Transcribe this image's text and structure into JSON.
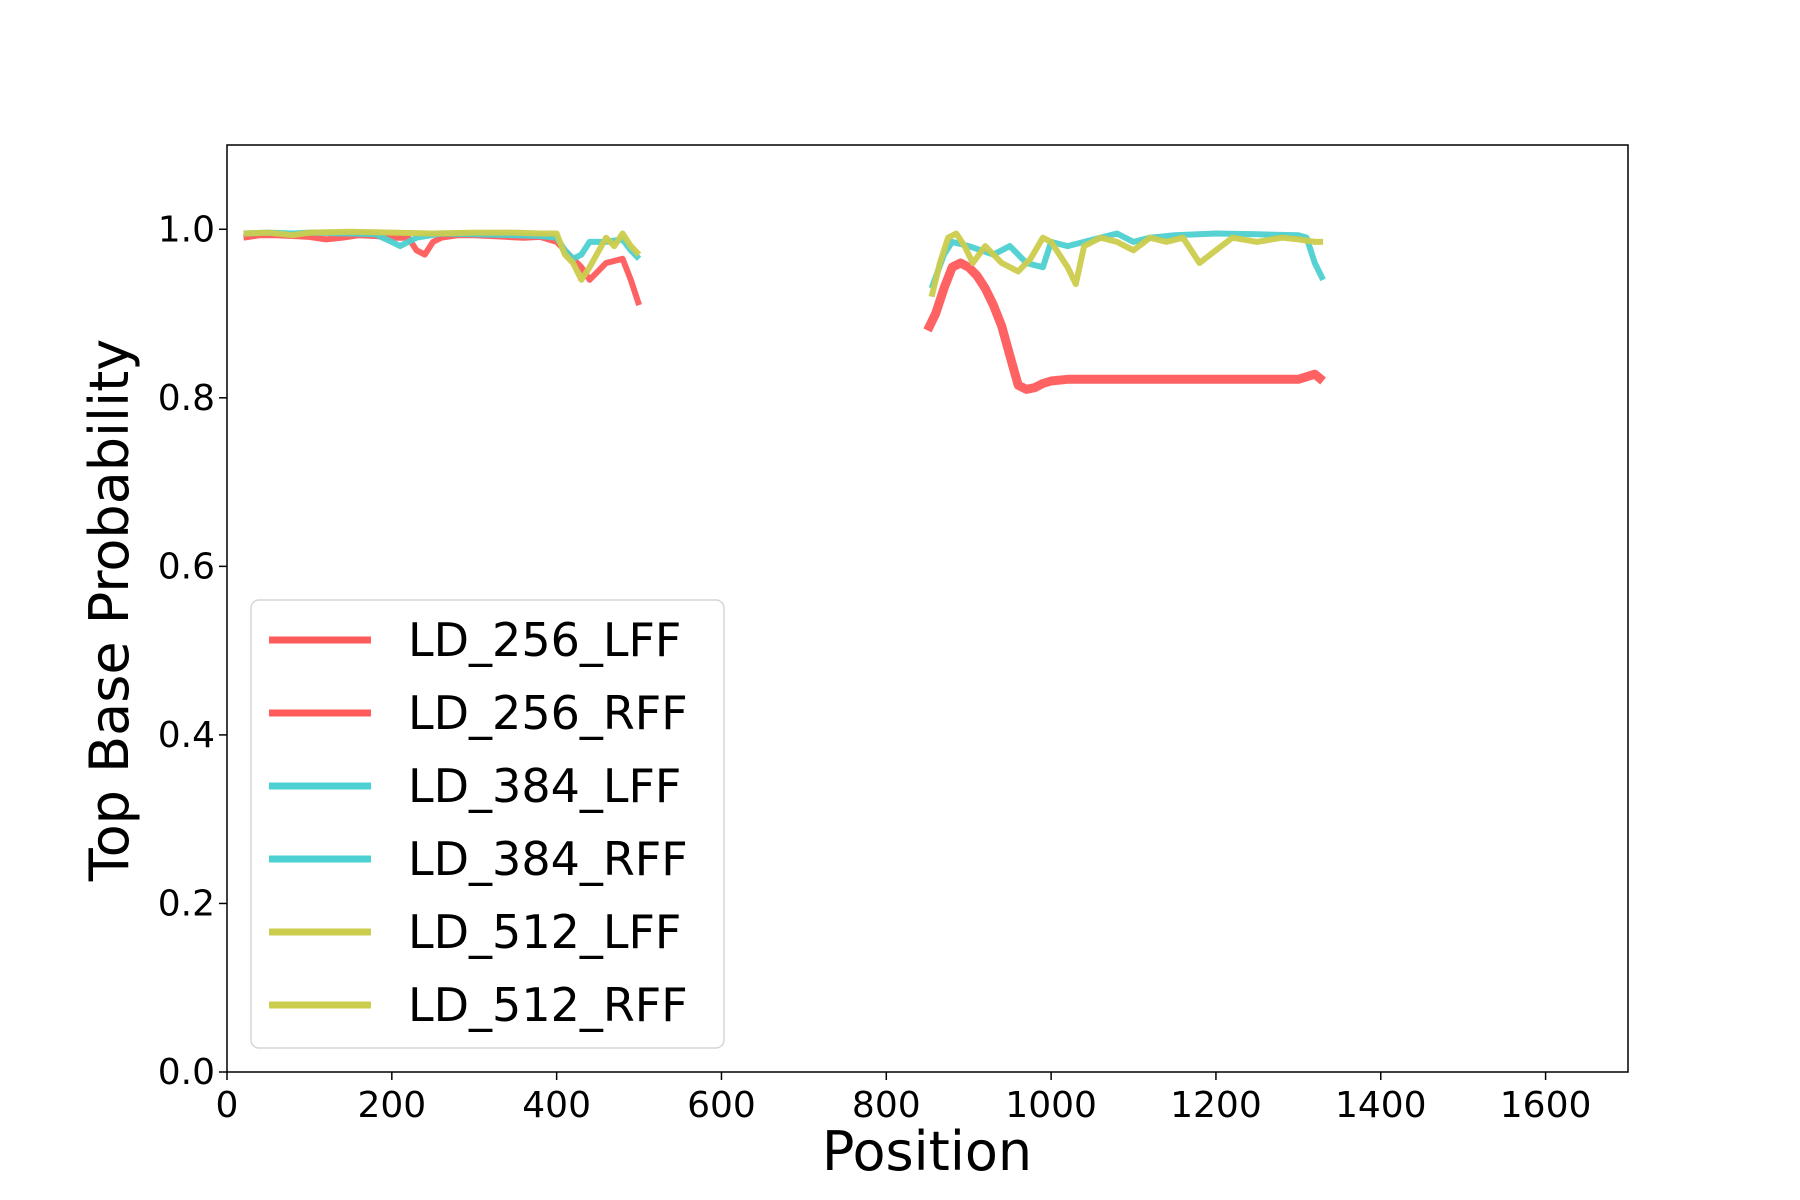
{
  "chart_data": {
    "type": "line",
    "xlabel": "Position",
    "ylabel": "Top Base Probability",
    "xlim": [
      0,
      1700
    ],
    "ylim": [
      0,
      1.1
    ],
    "xticks": [
      0,
      200,
      400,
      600,
      800,
      1000,
      1200,
      1400,
      1600
    ],
    "yticks": [
      0.0,
      0.2,
      0.4,
      0.6,
      0.8,
      1.0
    ],
    "xtick_labels": [
      "0",
      "200",
      "400",
      "600",
      "800",
      "1000",
      "1200",
      "1400",
      "1600"
    ],
    "ytick_labels": [
      "0.0",
      "0.2",
      "0.4",
      "0.6",
      "0.8",
      "1.0"
    ],
    "grid": false,
    "legend_position": "lower-left",
    "series": [
      {
        "name": "LD_256_LFF",
        "color": "#ff5a5a",
        "x": [
          20,
          40,
          60,
          80,
          100,
          120,
          140,
          160,
          180,
          200,
          220,
          230,
          240,
          250,
          260,
          280,
          300,
          320,
          340,
          360,
          380,
          400,
          410,
          420,
          430,
          440,
          460,
          480,
          490,
          500
        ],
        "y": [
          0.99,
          0.993,
          0.993,
          0.992,
          0.991,
          0.988,
          0.99,
          0.993,
          0.992,
          0.99,
          0.99,
          0.975,
          0.97,
          0.985,
          0.99,
          0.993,
          0.993,
          0.992,
          0.991,
          0.99,
          0.991,
          0.985,
          0.975,
          0.965,
          0.955,
          0.94,
          0.96,
          0.965,
          0.94,
          0.91
        ]
      },
      {
        "name": "LD_256_RFF",
        "color": "#ff5a5a",
        "x": [
          850,
          860,
          870,
          880,
          890,
          900,
          910,
          920,
          930,
          940,
          950,
          960,
          970,
          980,
          990,
          1000,
          1020,
          1050,
          1100,
          1150,
          1200,
          1250,
          1300,
          1320,
          1330
        ],
        "y": [
          0.88,
          0.9,
          0.93,
          0.955,
          0.96,
          0.955,
          0.945,
          0.93,
          0.91,
          0.885,
          0.85,
          0.815,
          0.81,
          0.812,
          0.817,
          0.82,
          0.822,
          0.822,
          0.822,
          0.822,
          0.822,
          0.822,
          0.822,
          0.828,
          0.82
        ]
      },
      {
        "name": "LD_384_LFF",
        "color": "#4dd0d1",
        "x": [
          20,
          50,
          80,
          100,
          150,
          180,
          200,
          210,
          230,
          260,
          300,
          350,
          380,
          400,
          410,
          420,
          430,
          440,
          460,
          480,
          490,
          500
        ],
        "y": [
          0.995,
          0.996,
          0.995,
          0.996,
          0.995,
          0.994,
          0.985,
          0.98,
          0.99,
          0.995,
          0.994,
          0.993,
          0.992,
          0.99,
          0.975,
          0.965,
          0.97,
          0.985,
          0.985,
          0.988,
          0.975,
          0.965
        ]
      },
      {
        "name": "LD_384_RFF",
        "color": "#4dd0d1",
        "x": [
          855,
          870,
          880,
          900,
          930,
          950,
          970,
          990,
          1000,
          1020,
          1040,
          1060,
          1080,
          1100,
          1120,
          1150,
          1200,
          1250,
          1300,
          1310,
          1320,
          1330
        ],
        "y": [
          0.93,
          0.97,
          0.985,
          0.98,
          0.97,
          0.98,
          0.96,
          0.955,
          0.985,
          0.98,
          0.985,
          0.99,
          0.995,
          0.985,
          0.99,
          0.993,
          0.995,
          0.994,
          0.993,
          0.99,
          0.96,
          0.94
        ]
      },
      {
        "name": "LD_512_LFF",
        "color": "#cccc4d",
        "x": [
          20,
          50,
          80,
          100,
          150,
          200,
          250,
          300,
          350,
          380,
          400,
          410,
          420,
          430,
          440,
          460,
          470,
          480,
          490,
          500
        ],
        "y": [
          0.995,
          0.996,
          0.993,
          0.996,
          0.997,
          0.996,
          0.995,
          0.996,
          0.996,
          0.995,
          0.995,
          0.97,
          0.96,
          0.94,
          0.955,
          0.99,
          0.98,
          0.995,
          0.98,
          0.97
        ]
      },
      {
        "name": "LD_512_RFF",
        "color": "#cccc4d",
        "x": [
          855,
          865,
          875,
          885,
          895,
          905,
          920,
          940,
          960,
          975,
          990,
          1000,
          1020,
          1030,
          1040,
          1060,
          1080,
          1100,
          1120,
          1140,
          1160,
          1180,
          1200,
          1220,
          1250,
          1280,
          1300,
          1320,
          1330
        ],
        "y": [
          0.92,
          0.96,
          0.99,
          0.995,
          0.98,
          0.96,
          0.98,
          0.96,
          0.95,
          0.965,
          0.99,
          0.985,
          0.955,
          0.935,
          0.98,
          0.99,
          0.985,
          0.975,
          0.99,
          0.985,
          0.99,
          0.96,
          0.975,
          0.99,
          0.985,
          0.99,
          0.988,
          0.985,
          0.985
        ]
      }
    ]
  }
}
